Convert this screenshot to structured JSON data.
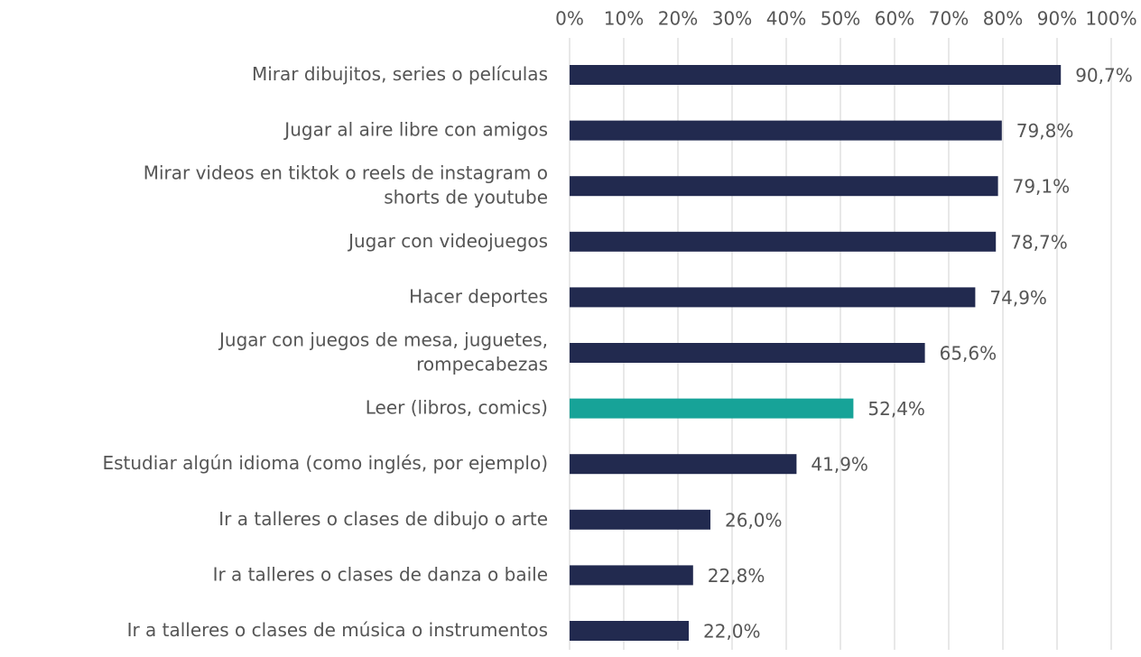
{
  "chart_data": {
    "type": "hbar",
    "categories": [
      "Mirar dibujitos, series o películas",
      "Jugar al aire libre con amigos",
      "Mirar videos en tiktok o reels de instagram  o\nshorts de youtube",
      "Jugar con videojuegos",
      "Hacer deportes",
      "Jugar con juegos de mesa, juguetes,\nrompecabezas",
      "Leer (libros, comics)",
      "Estudiar algún idioma (como inglés, por ejemplo)",
      "Ir a talleres o clases de dibujo o arte",
      "Ir a talleres o clases de danza o baile",
      "Ir a talleres o clases de música o instrumentos"
    ],
    "values": [
      90.7,
      79.8,
      79.1,
      78.7,
      74.9,
      65.6,
      52.4,
      41.9,
      26.0,
      22.8,
      22.0
    ],
    "value_labels": [
      "90,7%",
      "79,8%",
      "79,1%",
      "78,7%",
      "74,9%",
      "65,6%",
      "52,4%",
      "41,9%",
      "26,0%",
      "22,8%",
      "22,0%"
    ],
    "colors": [
      "#222a4f",
      "#222a4f",
      "#222a4f",
      "#222a4f",
      "#222a4f",
      "#222a4f",
      "#17a398",
      "#222a4f",
      "#222a4f",
      "#222a4f",
      "#222a4f"
    ],
    "xlim": [
      0,
      100
    ],
    "xticks": [
      {
        "value": 0,
        "label": "0%"
      },
      {
        "value": 10,
        "label": "10%"
      },
      {
        "value": 20,
        "label": "20%"
      },
      {
        "value": 30,
        "label": "30%"
      },
      {
        "value": 40,
        "label": "40%"
      },
      {
        "value": 50,
        "label": "50%"
      },
      {
        "value": 60,
        "label": "60%"
      },
      {
        "value": 70,
        "label": "70%"
      },
      {
        "value": 80,
        "label": "80%"
      },
      {
        "value": 90,
        "label": "90%"
      },
      {
        "value": 100,
        "label": "100%"
      }
    ],
    "grid": true
  }
}
